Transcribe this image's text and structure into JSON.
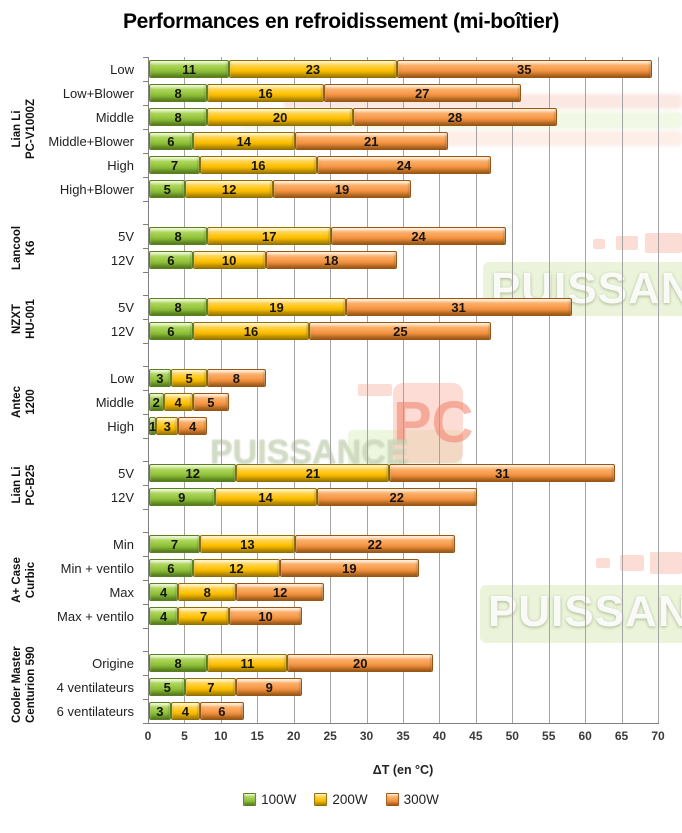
{
  "title": "Performances en refroidissement (mi-boîtier)",
  "watermark": {
    "word": "PUISSANCE",
    "pc": "PC"
  },
  "chart_data": {
    "type": "bar",
    "stacked": true,
    "orientation": "horizontal",
    "title": "Performances en refroidissement (mi-boîtier)",
    "xlabel": "ΔT (en °C)",
    "xlim": [
      0,
      70
    ],
    "xticks": [
      0,
      5,
      10,
      15,
      20,
      25,
      30,
      35,
      40,
      45,
      50,
      55,
      60,
      65,
      70
    ],
    "grid": true,
    "legend_position": "bottom",
    "series": [
      "100W",
      "200W",
      "300W"
    ],
    "series_colors": {
      "100W": "#92C33E",
      "200W": "#FFC000",
      "300W": "#F79646"
    },
    "groups": [
      {
        "name_lines": [
          "Lian Li",
          "PC-V1000Z"
        ],
        "rows": [
          {
            "label": "Low",
            "values": [
              11,
              23,
              35
            ]
          },
          {
            "label": "Low+Blower",
            "values": [
              8,
              16,
              27
            ]
          },
          {
            "label": "Middle",
            "values": [
              8,
              20,
              28
            ]
          },
          {
            "label": "Middle+Blower",
            "values": [
              6,
              14,
              21
            ]
          },
          {
            "label": "High",
            "values": [
              7,
              16,
              24
            ]
          },
          {
            "label": "High+Blower",
            "values": [
              5,
              12,
              19
            ]
          }
        ]
      },
      {
        "name_lines": [
          "Lancool",
          "K6"
        ],
        "rows": [
          {
            "label": "5V",
            "values": [
              8,
              17,
              24
            ]
          },
          {
            "label": "12V",
            "values": [
              6,
              10,
              18
            ]
          }
        ]
      },
      {
        "name_lines": [
          "NZXT",
          "HU-001"
        ],
        "rows": [
          {
            "label": "5V",
            "values": [
              8,
              19,
              31
            ]
          },
          {
            "label": "12V",
            "values": [
              6,
              16,
              25
            ]
          }
        ]
      },
      {
        "name_lines": [
          "Antec",
          "1200"
        ],
        "rows": [
          {
            "label": "Low",
            "values": [
              3,
              5,
              8
            ]
          },
          {
            "label": "Middle",
            "values": [
              2,
              4,
              5
            ]
          },
          {
            "label": "High",
            "values": [
              1,
              3,
              4
            ]
          }
        ]
      },
      {
        "name_lines": [
          "Lian Li",
          "PC-B25"
        ],
        "rows": [
          {
            "label": "5V",
            "values": [
              12,
              21,
              31
            ]
          },
          {
            "label": "12V",
            "values": [
              9,
              14,
              22
            ]
          }
        ]
      },
      {
        "name_lines": [
          "A+ Case",
          "Curbic"
        ],
        "rows": [
          {
            "label": "Min",
            "values": [
              7,
              13,
              22
            ]
          },
          {
            "label": "Min + ventilo",
            "values": [
              6,
              12,
              19
            ]
          },
          {
            "label": "Max",
            "values": [
              4,
              8,
              12
            ]
          },
          {
            "label": "Max + ventilo",
            "values": [
              4,
              7,
              10
            ]
          }
        ]
      },
      {
        "name_lines": [
          "Cooler Master",
          "Centurion 590"
        ],
        "rows": [
          {
            "label": "Origine",
            "values": [
              8,
              11,
              20
            ]
          },
          {
            "label": "4 ventilateurs",
            "values": [
              5,
              7,
              9
            ]
          },
          {
            "label": "6 ventilateurs",
            "values": [
              3,
              4,
              6
            ]
          }
        ]
      }
    ]
  }
}
